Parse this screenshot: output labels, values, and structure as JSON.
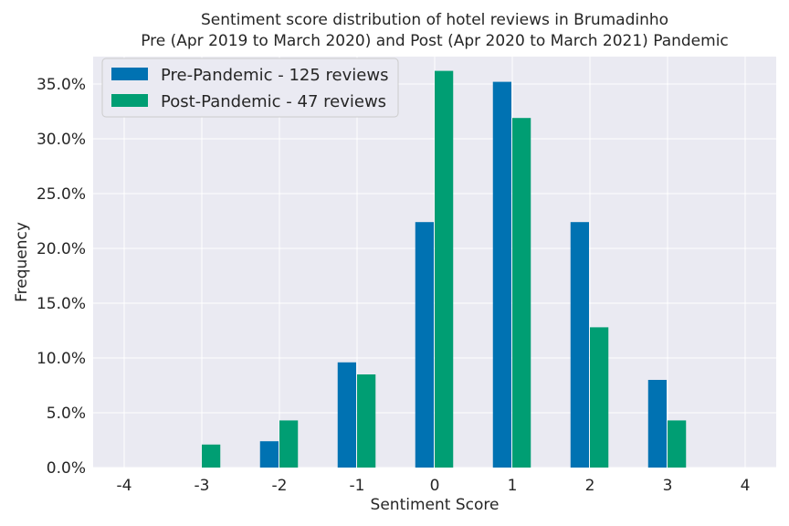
{
  "chart_data": {
    "type": "bar",
    "title": "Sentiment score distribution of hotel reviews in Brumadinho",
    "subtitle": "Pre (Apr 2019 to March 2020) and Post (Apr 2020 to March 2021) Pandemic",
    "xlabel": "Sentiment Score",
    "ylabel": "Frequency",
    "categories": [
      "-4",
      "-3",
      "-2",
      "-1",
      "0",
      "1",
      "2",
      "3",
      "4"
    ],
    "x": [
      -4,
      -3,
      -2,
      -1,
      0,
      1,
      2,
      3,
      4
    ],
    "series": [
      {
        "name": "Pre-Pandemic - 125 reviews",
        "color": "#0072b2",
        "values": [
          0,
          0,
          2.4,
          9.6,
          22.4,
          35.2,
          22.4,
          8.0,
          0
        ]
      },
      {
        "name": "Post-Pandemic - 47 reviews",
        "color": "#009e73",
        "values": [
          0,
          2.1,
          4.3,
          8.5,
          36.2,
          31.9,
          12.8,
          4.3,
          0
        ]
      }
    ],
    "yticks": [
      0,
      5,
      10,
      15,
      20,
      25,
      30,
      35
    ],
    "ytick_labels": [
      "0.0%",
      "5.0%",
      "10.0%",
      "15.0%",
      "20.0%",
      "25.0%",
      "30.0%",
      "35.0%"
    ],
    "ylim": [
      0,
      37.5
    ],
    "xlim": [
      -4.4,
      4.4
    ],
    "grid": true,
    "legend_position": "top-left",
    "background_color": "#eaeaf2"
  }
}
